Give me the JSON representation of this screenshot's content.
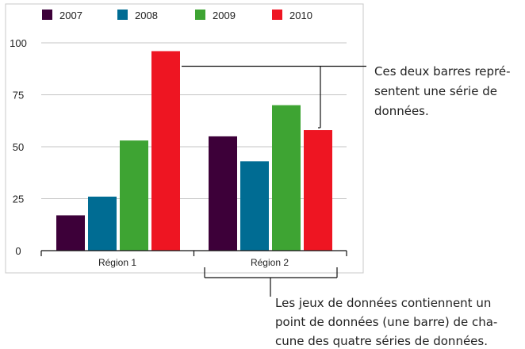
{
  "chart_data": {
    "type": "bar",
    "categories": [
      "Région 1",
      "Région 2"
    ],
    "series": [
      {
        "name": "2007",
        "color": "#3d0039",
        "values": [
          17,
          55
        ]
      },
      {
        "name": "2008",
        "color": "#006c93",
        "values": [
          26,
          43
        ]
      },
      {
        "name": "2009",
        "color": "#3ea433",
        "values": [
          53,
          70
        ]
      },
      {
        "name": "2010",
        "color": "#ee1522",
        "values": [
          96,
          58
        ]
      }
    ],
    "yticks": [
      0,
      25,
      50,
      75,
      100
    ],
    "ylim": [
      0,
      100
    ],
    "grid": true,
    "legend_position": "top"
  },
  "annotations": {
    "series_note": [
      "Ces deux barres repré-",
      "sentent une série de",
      "données."
    ],
    "dataset_note": [
      "Les jeux de données contiennent un",
      "point de données (une barre) de cha-",
      "cune des quatre séries de données."
    ]
  }
}
